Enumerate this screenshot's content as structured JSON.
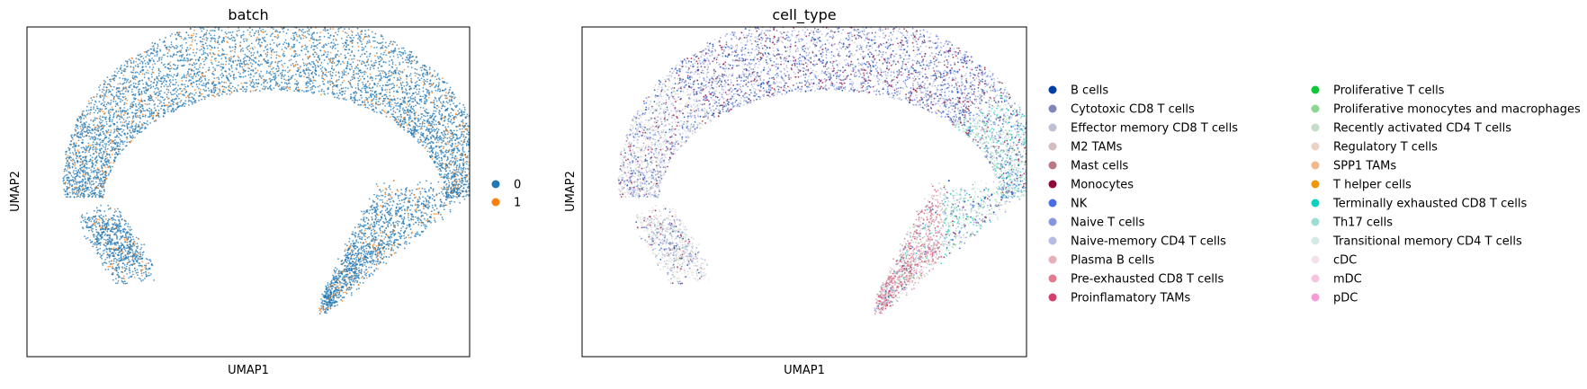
{
  "chart_data": [
    {
      "type": "scatter",
      "title": "batch",
      "xlabel": "UMAP1",
      "ylabel": "UMAP2",
      "grid": false,
      "ticks": false,
      "legend_position": "right",
      "series": [
        {
          "name": "0",
          "color": "#1f77b4"
        },
        {
          "name": "1",
          "color": "#ff7f0e"
        }
      ]
    },
    {
      "type": "scatter",
      "title": "cell_type",
      "xlabel": "UMAP1",
      "ylabel": "UMAP2",
      "grid": false,
      "ticks": false,
      "legend_position": "right",
      "legend_columns": 2,
      "series": [
        {
          "name": "B cells",
          "color": "#023fa5"
        },
        {
          "name": "Cytotoxic CD8 T cells",
          "color": "#7d87b9"
        },
        {
          "name": "Effector memory CD8 T cells",
          "color": "#bec1d4"
        },
        {
          "name": "M2 TAMs",
          "color": "#d6bcc0"
        },
        {
          "name": "Mast cells",
          "color": "#bb7784"
        },
        {
          "name": "Monocytes",
          "color": "#8e063b"
        },
        {
          "name": "NK",
          "color": "#4a6fe3"
        },
        {
          "name": "Naive T cells",
          "color": "#8595e1"
        },
        {
          "name": "Naive-memory CD4 T cells",
          "color": "#b5bbe3"
        },
        {
          "name": "Plasma B cells",
          "color": "#e6afb9"
        },
        {
          "name": "Pre-exhausted CD8 T cells",
          "color": "#e07b91"
        },
        {
          "name": "Proinflamatory TAMs",
          "color": "#d33f6a"
        },
        {
          "name": "Proliferative T cells",
          "color": "#11c638"
        },
        {
          "name": "Proliferative monocytes and macrophages",
          "color": "#8dd593"
        },
        {
          "name": "Recently activated CD4 T cells",
          "color": "#c6dec7"
        },
        {
          "name": "Regulatory T cells",
          "color": "#ead3c6"
        },
        {
          "name": "SPP1 TAMs",
          "color": "#f0b98d"
        },
        {
          "name": "T helper cells",
          "color": "#ef9708"
        },
        {
          "name": "Terminally exhausted CD8 T cells",
          "color": "#0fcfc0"
        },
        {
          "name": "Th17 cells",
          "color": "#9cded6"
        },
        {
          "name": "Transitional memory CD4 T cells",
          "color": "#d5eae7"
        },
        {
          "name": "cDC",
          "color": "#f3e1eb"
        },
        {
          "name": "mDC",
          "color": "#f6c4e1"
        },
        {
          "name": "pDC",
          "color": "#f79cd4"
        }
      ]
    }
  ]
}
